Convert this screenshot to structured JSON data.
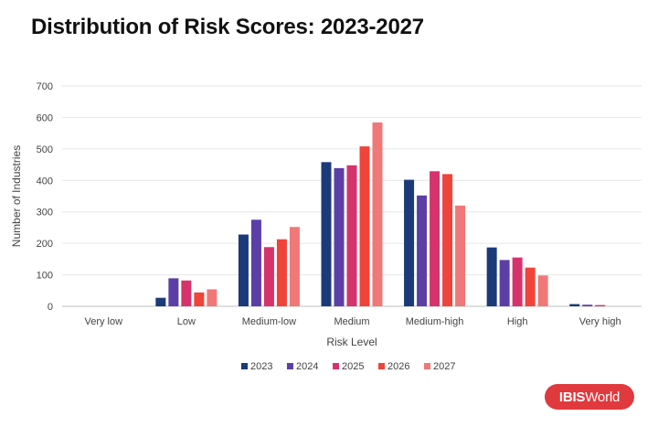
{
  "title": "Distribution of Risk Scores: 2023-2027",
  "logo": {
    "part1": "IBIS",
    "part2": "World"
  },
  "chart_data": {
    "type": "bar",
    "title": "Distribution of Risk Scores: 2023-2027",
    "xlabel": "Risk Level",
    "ylabel": "Number of Industries",
    "ylim": [
      0,
      700
    ],
    "yticks": [
      0,
      100,
      200,
      300,
      400,
      500,
      600,
      700
    ],
    "grid": true,
    "legend_position": "bottom",
    "categories": [
      "Very low",
      "Low",
      "Medium-low",
      "Medium",
      "Medium-high",
      "High",
      "Very high"
    ],
    "series": [
      {
        "name": "2023",
        "color": "#1b3a7a",
        "values": [
          0,
          27,
          228,
          458,
          402,
          187,
          7
        ]
      },
      {
        "name": "2024",
        "color": "#5b3fa6",
        "values": [
          0,
          89,
          275,
          439,
          352,
          147,
          5
        ]
      },
      {
        "name": "2025",
        "color": "#d6336c",
        "values": [
          0,
          82,
          188,
          448,
          429,
          155,
          4
        ]
      },
      {
        "name": "2026",
        "color": "#f0433a",
        "values": [
          0,
          44,
          213,
          508,
          420,
          123,
          0
        ]
      },
      {
        "name": "2027",
        "color": "#f07878",
        "values": [
          0,
          54,
          252,
          584,
          320,
          98,
          0
        ]
      }
    ]
  }
}
